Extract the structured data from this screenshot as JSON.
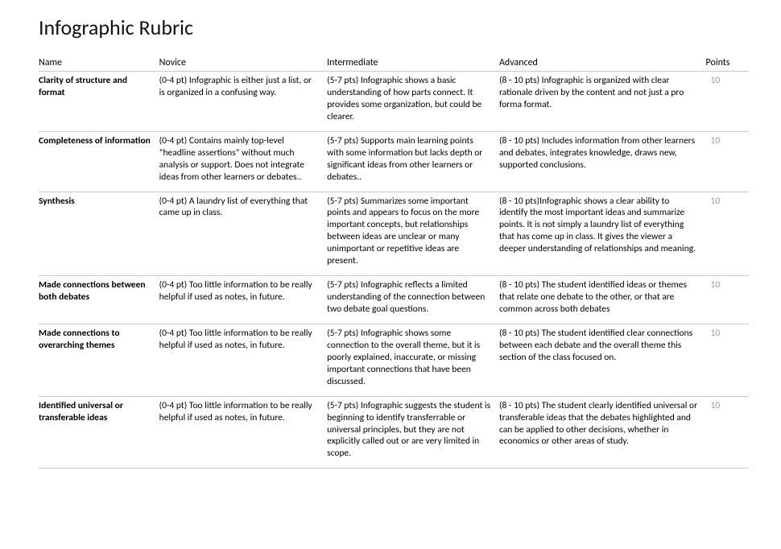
{
  "title": "Infographic Rubric",
  "columns": [
    "Name",
    "Novice",
    "Intermediate",
    "Advanced",
    "Points"
  ],
  "colors": {
    "text": "#000000",
    "muted": "#9a9a9a",
    "border": "#c9c9c9",
    "background": "#ffffff"
  },
  "fonts": {
    "title_size_pt": 20,
    "header_size_pt": 9,
    "body_size_pt": 8.5
  },
  "rows": [
    {
      "name": "Clarity of structure and format",
      "novice": "(0-4 pt) Infographic is either just a list, or is organized in a confusing way.",
      "intermediate": "(5-7 pts) Infographic shows a basic understanding of how parts connect. It provides some organization, but could be clearer.",
      "advanced": "(8 - 10 pts) Infographic is organized with clear rationale driven by the content and not just a pro forma format.",
      "points": "10",
      "gap_after": true
    },
    {
      "name": "Completeness of information",
      "novice": "(0-4 pt) Contains mainly top-level “headline assertions” without much analysis or support. Does not integrate ideas from other learners or debates..",
      "intermediate": "(5-7 pts)  Supports main learning points with some information but lacks depth or significant ideas from other learners or debates..",
      "advanced": "(8 - 10 pts) Includes information from other learners and debates, integrates knowledge, draws new, supported conclusions.",
      "points": "10",
      "gap_after": false
    },
    {
      "name": "Synthesis",
      "novice": "(0-4 pt) A laundry list of everything that came up in class.",
      "intermediate": "(5-7 pts)  Summarizes some important points and appears to focus on the more important concepts, but relationships between ideas are unclear or many unimportant or repetitive ideas are present.",
      "advanced": "(8 - 10 pts)Infographic shows a clear ability to identify the most important ideas and summarize points. It is not simply a laundry list of everything that has come up in class. It gives the viewer a deeper understanding of relationships and meaning.",
      "points": "10",
      "gap_after": true
    },
    {
      "name": "Made connections between both debates",
      "novice": "(0-4 pt) Too little information to be really helpful if used as notes, in future.",
      "intermediate": "(5-7 pts) Infographic reflects a limited understanding of the connection between two debate goal questions.",
      "advanced": "(8 - 10 pts) The student identified ideas or themes that relate one debate to the other, or that are common across both debates",
      "points": "10",
      "gap_after": true
    },
    {
      "name": "Made connections to overarching themes",
      "novice": "(0-4 pt) Too little information to be really helpful if used as notes, in future.",
      "intermediate": "(5-7 pts) Infographic shows some connection to the overall theme, but it is poorly explained, inaccurate, or missing important connections that have been discussed.",
      "advanced": "(8 - 10 pts) The student identified clear connections between each debate and the overall theme this section of the class focused on.",
      "points": "10",
      "gap_after": false
    },
    {
      "name": "Identified universal or transferable ideas",
      "novice": "(0-4 pt)  Too little information to be really helpful if used as notes, in future.",
      "intermediate": "(5-7 pts) Infographic suggests the student is beginning to identify transferrable or universal principles, but they are not explicitly called out or are very limited in scope.",
      "advanced": "(8 - 10 pts) The student clearly identified universal or transferable ideas that the debates highlighted and can be applied to other decisions, whether in economics or other areas of study.",
      "points": "10",
      "gap_after": false
    }
  ]
}
